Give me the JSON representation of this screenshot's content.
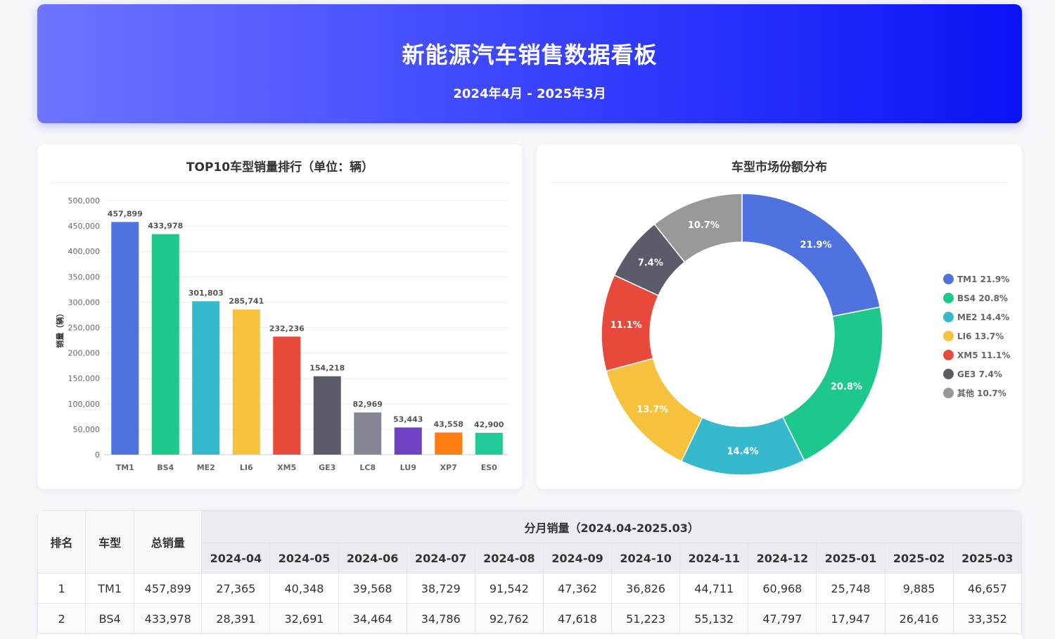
{
  "header": {
    "title": "新能源汽车销售数据看板",
    "subtitle": "2024年4月 - 2025年3月"
  },
  "chart_data": [
    {
      "type": "bar",
      "title": "TOP10车型销量排行（单位：辆）",
      "ylabel": "销量（辆）",
      "xlabel": "",
      "ylim": [
        0,
        500000
      ],
      "yticks": [
        "0",
        "50,000",
        "100,000",
        "150,000",
        "200,000",
        "250,000",
        "300,000",
        "350,000",
        "400,000",
        "450,000",
        "500,000"
      ],
      "categories": [
        "TM1",
        "BS4",
        "ME2",
        "LI6",
        "XM5",
        "GE3",
        "LC8",
        "LU9",
        "XP7",
        "ES0"
      ],
      "values": [
        457899,
        433978,
        301803,
        285741,
        232236,
        154218,
        82969,
        53443,
        43558,
        42900
      ],
      "value_labels": [
        "457,899",
        "433,978",
        "301,803",
        "285,741",
        "232,236",
        "154,218",
        "82,969",
        "53,443",
        "43,558",
        "42,900"
      ],
      "colors": [
        "#4e73df",
        "#1cc88a",
        "#36b9cc",
        "#f6c23e",
        "#e74a3b",
        "#5a5c69",
        "#858796",
        "#6f42c1",
        "#fd7e14",
        "#20c997"
      ],
      "grid": true
    },
    {
      "type": "pie",
      "title": "车型市场份额分布",
      "categories": [
        "TM1",
        "BS4",
        "ME2",
        "LI6",
        "XM5",
        "GE3",
        "其他"
      ],
      "values": [
        21.9,
        20.8,
        14.4,
        13.7,
        11.1,
        7.4,
        10.7
      ],
      "slice_labels": [
        "21.9%",
        "20.8%",
        "14.4%",
        "13.7%",
        "11.1%",
        "7.4%",
        "10.7%"
      ],
      "legend_labels": [
        "TM1 21.9%",
        "BS4 20.8%",
        "ME2 14.4%",
        "LI6 13.7%",
        "XM5 11.1%",
        "GE3 7.4%",
        "其他 10.7%"
      ],
      "colors": [
        "#4e73df",
        "#1cc88a",
        "#36b9cc",
        "#f6c23e",
        "#e74a3b",
        "#5a5c69",
        "#999999"
      ],
      "legend_position": "right",
      "donut": true
    }
  ],
  "table": {
    "headers": {
      "rank": "排名",
      "model": "车型",
      "total": "总销量",
      "monthly_group": "分月销量（2024.04-2025.03）",
      "months": [
        "2024-04",
        "2024-05",
        "2024-06",
        "2024-07",
        "2024-08",
        "2024-09",
        "2024-10",
        "2024-11",
        "2024-12",
        "2025-01",
        "2025-02",
        "2025-03"
      ]
    },
    "rows": [
      [
        "1",
        "TM1",
        "457,899",
        "27,365",
        "40,348",
        "39,568",
        "38,729",
        "91,542",
        "47,362",
        "36,826",
        "44,711",
        "60,968",
        "25,748",
        "9,885",
        "46,657"
      ],
      [
        "2",
        "BS4",
        "433,978",
        "28,391",
        "32,691",
        "34,464",
        "34,786",
        "92,762",
        "47,618",
        "51,223",
        "55,132",
        "47,797",
        "17,947",
        "26,416",
        "33,352"
      ]
    ]
  }
}
